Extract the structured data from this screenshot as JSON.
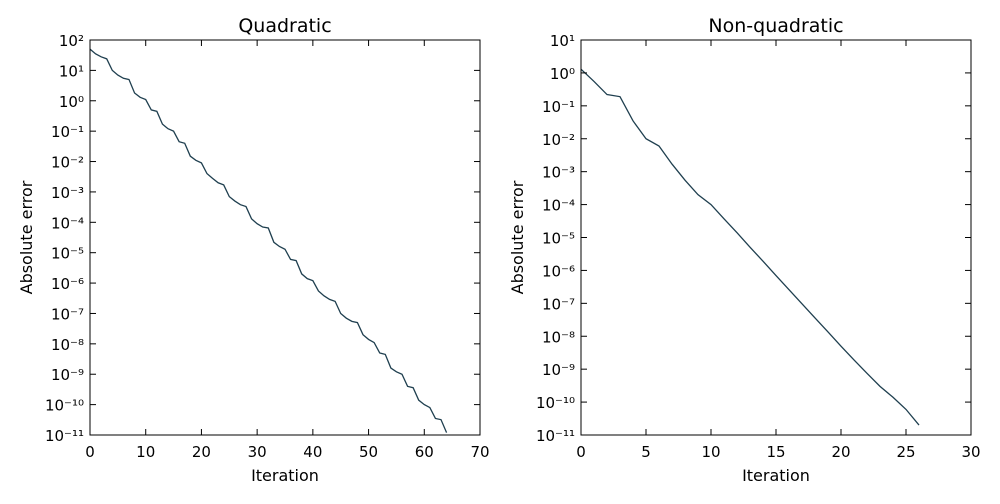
{
  "chart_data": [
    {
      "type": "line",
      "title": "Quadratic",
      "xlabel": "Iteration",
      "ylabel": "Absolute error",
      "log_y": true,
      "x": [
        0,
        1,
        2,
        3,
        4,
        5,
        6,
        7,
        8,
        9,
        10,
        11,
        12,
        13,
        14,
        15,
        16,
        17,
        18,
        19,
        20,
        21,
        22,
        23,
        24,
        25,
        26,
        27,
        28,
        29,
        30,
        31,
        32,
        33,
        34,
        35,
        36,
        37,
        38,
        39,
        40,
        41,
        42,
        43,
        44,
        45,
        46,
        47,
        48,
        49,
        50,
        51,
        52,
        53,
        54,
        55,
        56,
        57,
        58,
        59,
        60,
        61,
        62,
        63,
        64
      ],
      "series": [
        {
          "name": "error",
          "color": "#1f3f4f",
          "values": [
            50,
            35,
            28,
            24,
            10,
            7,
            5.5,
            5,
            1.8,
            1.3,
            1.1,
            0.5,
            0.45,
            0.17,
            0.12,
            0.1,
            0.045,
            0.04,
            0.015,
            0.011,
            0.009,
            0.004,
            0.0028,
            0.002,
            0.0017,
            0.0007,
            0.0005,
            0.00038,
            0.00033,
            0.00013,
            9e-05,
            7e-05,
            6.5e-05,
            2.2e-05,
            1.6e-05,
            1.3e-05,
            6e-06,
            5.5e-06,
            2e-06,
            1.4e-06,
            1.2e-06,
            5.5e-07,
            3.8e-07,
            2.9e-07,
            2.5e-07,
            1e-07,
            7e-08,
            5.5e-08,
            5e-08,
            2e-08,
            1.4e-08,
            1.1e-08,
            5e-09,
            4.5e-09,
            1.6e-09,
            1.2e-09,
            1e-09,
            4e-10,
            3.6e-10,
            1.4e-10,
            1e-10,
            8e-11,
            3.5e-11,
            3.2e-11,
            1.2e-11
          ]
        }
      ],
      "xlim": [
        0,
        70
      ],
      "xticks": [
        0,
        10,
        20,
        30,
        40,
        50,
        60,
        70
      ],
      "ylim": [
        1e-11,
        100
      ],
      "yticks": [
        {
          "value": 100,
          "label": "10²"
        },
        {
          "value": 10,
          "label": "10¹"
        },
        {
          "value": 1,
          "label": "10⁰"
        },
        {
          "value": 0.1,
          "label": "10⁻¹"
        },
        {
          "value": 0.01,
          "label": "10⁻²"
        },
        {
          "value": 0.001,
          "label": "10⁻³"
        },
        {
          "value": 0.0001,
          "label": "10⁻⁴"
        },
        {
          "value": 1e-05,
          "label": "10⁻⁵"
        },
        {
          "value": 1e-06,
          "label": "10⁻⁶"
        },
        {
          "value": 1e-07,
          "label": "10⁻⁷"
        },
        {
          "value": 1e-08,
          "label": "10⁻⁸"
        },
        {
          "value": 1e-09,
          "label": "10⁻⁹"
        },
        {
          "value": 1e-10,
          "label": "10⁻¹⁰"
        },
        {
          "value": 1e-11,
          "label": "10⁻¹¹"
        }
      ]
    },
    {
      "type": "line",
      "title": "Non-quadratic",
      "xlabel": "Iteration",
      "ylabel": "Absolute error",
      "log_y": true,
      "x": [
        0,
        1,
        2,
        3,
        4,
        5,
        6,
        7,
        8,
        9,
        10,
        11,
        12,
        13,
        14,
        15,
        16,
        17,
        18,
        19,
        20,
        21,
        22,
        23,
        24,
        25,
        26
      ],
      "series": [
        {
          "name": "error",
          "color": "#1f3f4f",
          "values": [
            1.3,
            0.55,
            0.22,
            0.19,
            0.035,
            0.01,
            0.006,
            0.0017,
            0.00055,
            0.0002,
            0.0001,
            3.7e-05,
            1.4e-05,
            5.1e-06,
            1.9e-06,
            7e-07,
            2.6e-07,
            9.7e-08,
            3.6e-08,
            1.35e-08,
            5e-09,
            1.9e-09,
            7.5e-10,
            3e-10,
            1.4e-10,
            6e-11,
            2e-11
          ]
        }
      ],
      "xlim": [
        0,
        30
      ],
      "xticks": [
        0,
        5,
        10,
        15,
        20,
        25,
        30
      ],
      "ylim": [
        1e-11,
        10
      ],
      "yticks": [
        {
          "value": 10,
          "label": "10¹"
        },
        {
          "value": 1,
          "label": "10⁰"
        },
        {
          "value": 0.1,
          "label": "10⁻¹"
        },
        {
          "value": 0.01,
          "label": "10⁻²"
        },
        {
          "value": 0.001,
          "label": "10⁻³"
        },
        {
          "value": 0.0001,
          "label": "10⁻⁴"
        },
        {
          "value": 1e-05,
          "label": "10⁻⁵"
        },
        {
          "value": 1e-06,
          "label": "10⁻⁶"
        },
        {
          "value": 1e-07,
          "label": "10⁻⁷"
        },
        {
          "value": 1e-08,
          "label": "10⁻⁸"
        },
        {
          "value": 1e-09,
          "label": "10⁻⁹"
        },
        {
          "value": 1e-10,
          "label": "10⁻¹⁰"
        },
        {
          "value": 1e-11,
          "label": "10⁻¹¹"
        }
      ]
    }
  ]
}
